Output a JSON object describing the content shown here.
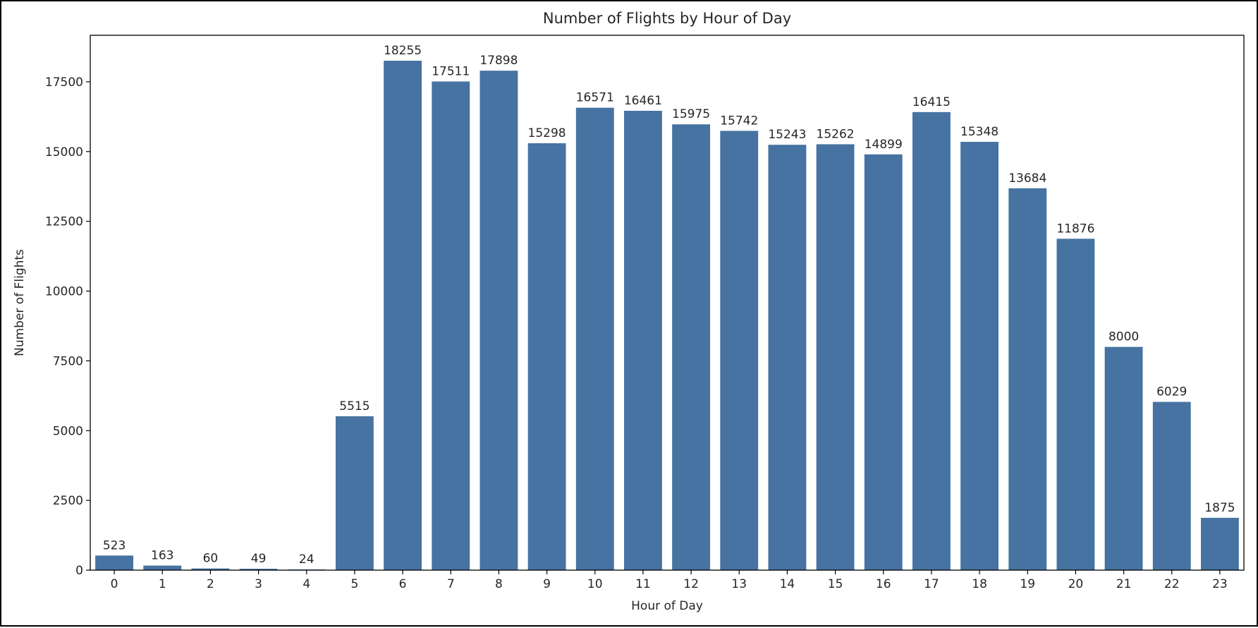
{
  "chart_data": {
    "type": "bar",
    "title": "Number of Flights by Hour of Day",
    "xlabel": "Hour of Day",
    "ylabel": "Number of Flights",
    "categories": [
      "0",
      "1",
      "2",
      "3",
      "4",
      "5",
      "6",
      "7",
      "8",
      "9",
      "10",
      "11",
      "12",
      "13",
      "14",
      "15",
      "16",
      "17",
      "18",
      "19",
      "20",
      "21",
      "22",
      "23"
    ],
    "values": [
      523,
      163,
      60,
      49,
      24,
      5515,
      18255,
      17511,
      17898,
      15298,
      16571,
      16461,
      15975,
      15742,
      15243,
      15262,
      14899,
      16415,
      15348,
      13684,
      11876,
      8000,
      6029,
      1875
    ],
    "ylim": [
      0,
      19167
    ],
    "yticks": [
      0,
      2500,
      5000,
      7500,
      10000,
      12500,
      15000,
      17500
    ],
    "bar_color": "#4673a1",
    "grid": false,
    "show_value_labels": true
  }
}
